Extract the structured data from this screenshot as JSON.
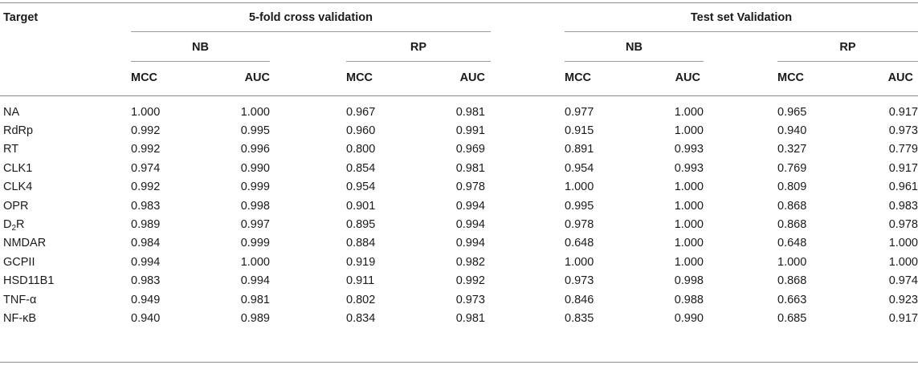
{
  "table": {
    "header": {
      "target": "Target",
      "groups": [
        "5-fold cross validation",
        "Test set Validation"
      ],
      "subgroups": [
        "NB",
        "RP",
        "NB",
        "RP"
      ],
      "metrics": [
        "MCC",
        "AUC",
        "MCC",
        "AUC",
        "MCC",
        "AUC",
        "MCC",
        "AUC"
      ]
    },
    "rows": [
      {
        "target": "NA",
        "values": [
          "1.000",
          "1.000",
          "0.967",
          "0.981",
          "0.977",
          "1.000",
          "0.965",
          "0.917"
        ]
      },
      {
        "target": "RdRp",
        "values": [
          "0.992",
          "0.995",
          "0.960",
          "0.991",
          "0.915",
          "1.000",
          "0.940",
          "0.973"
        ]
      },
      {
        "target": "RT",
        "values": [
          "0.992",
          "0.996",
          "0.800",
          "0.969",
          "0.891",
          "0.993",
          "0.327",
          "0.779"
        ]
      },
      {
        "target": "CLK1",
        "values": [
          "0.974",
          "0.990",
          "0.854",
          "0.981",
          "0.954",
          "0.993",
          "0.769",
          "0.917"
        ]
      },
      {
        "target": "CLK4",
        "values": [
          "0.992",
          "0.999",
          "0.954",
          "0.978",
          "1.000",
          "1.000",
          "0.809",
          "0.961"
        ]
      },
      {
        "target": "OPR",
        "values": [
          "0.983",
          "0.998",
          "0.901",
          "0.994",
          "0.995",
          "1.000",
          "0.868",
          "0.983"
        ]
      },
      {
        "target": "D",
        "target_sub": "2",
        "target_tail": "R",
        "values": [
          "0.989",
          "0.997",
          "0.895",
          "0.994",
          "0.978",
          "1.000",
          "0.868",
          "0.978"
        ]
      },
      {
        "target": "NMDAR",
        "values": [
          "0.984",
          "0.999",
          "0.884",
          "0.994",
          "0.648",
          "1.000",
          "0.648",
          "1.000"
        ]
      },
      {
        "target": "GCPII",
        "values": [
          "0.994",
          "1.000",
          "0.919",
          "0.982",
          "1.000",
          "1.000",
          "1.000",
          "1.000"
        ]
      },
      {
        "target": "HSD11B1",
        "values": [
          "0.983",
          "0.994",
          "0.911",
          "0.992",
          "0.973",
          "0.998",
          "0.868",
          "0.974"
        ]
      },
      {
        "target": "TNF-α",
        "values": [
          "0.949",
          "0.981",
          "0.802",
          "0.973",
          "0.846",
          "0.988",
          "0.663",
          "0.923"
        ]
      },
      {
        "target": "NF-κB",
        "values": [
          "0.940",
          "0.989",
          "0.834",
          "0.981",
          "0.835",
          "0.990",
          "0.685",
          "0.917"
        ]
      }
    ]
  }
}
